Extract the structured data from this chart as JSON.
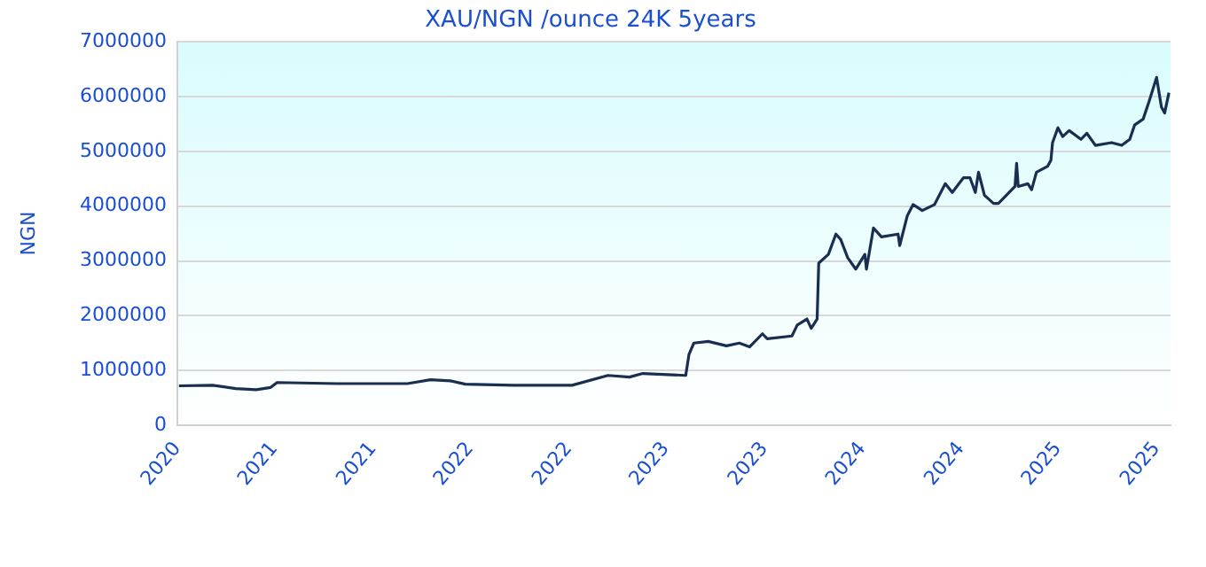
{
  "chart_data": {
    "type": "line",
    "title": "XAU/NGN /ounce 24K 5years",
    "ylabel": "NGN",
    "x": [
      "2020-11-04",
      "2021-01-06",
      "2021-02-18",
      "2021-03-28",
      "2021-04-24",
      "2021-05-06",
      "2021-08-25",
      "2022-01-04",
      "2022-02-16",
      "2022-03-25",
      "2022-04-22",
      "2022-07-21",
      "2022-11-07",
      "2023-01-13",
      "2023-02-22",
      "2023-03-19",
      "2023-06-07",
      "2023-06-13",
      "2023-06-22",
      "2023-07-19",
      "2023-08-22",
      "2023-09-15",
      "2023-10-04",
      "2023-10-28",
      "2023-11-06",
      "2023-12-22",
      "2024-01-01",
      "2024-01-19",
      "2024-01-27",
      "2024-02-07",
      "2024-02-10",
      "2024-02-28",
      "2024-03-13",
      "2024-03-22",
      "2024-04-04",
      "2024-04-19",
      "2024-05-06",
      "2024-05-09",
      "2024-05-22",
      "2024-06-06",
      "2024-07-07",
      "2024-07-10",
      "2024-07-24",
      "2024-08-04",
      "2024-08-21",
      "2024-09-13",
      "2024-10-03",
      "2024-10-16",
      "2024-11-06",
      "2024-11-18",
      "2024-11-28",
      "2024-12-04",
      "2024-12-15",
      "2025-01-01",
      "2025-01-10",
      "2025-02-10",
      "2025-02-13",
      "2025-02-16",
      "2025-03-06",
      "2025-03-13",
      "2025-03-22",
      "2025-04-12",
      "2025-04-18",
      "2025-04-21",
      "2025-05-01",
      "2025-05-10",
      "2025-05-22",
      "2025-06-13",
      "2025-06-24",
      "2025-07-10",
      "2025-08-09",
      "2025-08-28",
      "2025-09-12",
      "2025-09-21",
      "2025-10-07",
      "2025-10-18",
      "2025-11-01",
      "2025-11-10",
      "2025-11-16",
      "2025-11-24"
    ],
    "series": [
      {
        "color": "#1a2e50",
        "values": [
          720000,
          730000,
          670000,
          650000,
          690000,
          780000,
          760000,
          760000,
          830000,
          810000,
          750000,
          730000,
          730000,
          910000,
          880000,
          945000,
          910000,
          1290000,
          1500000,
          1530000,
          1450000,
          1500000,
          1430000,
          1670000,
          1580000,
          1630000,
          1830000,
          1940000,
          1770000,
          1940000,
          2960000,
          3120000,
          3490000,
          3390000,
          3060000,
          2850000,
          3120000,
          2850000,
          3600000,
          3440000,
          3490000,
          3280000,
          3820000,
          4030000,
          3920000,
          4030000,
          4410000,
          4250000,
          4520000,
          4520000,
          4250000,
          4620000,
          4200000,
          4050000,
          4050000,
          4360000,
          4780000,
          4360000,
          4410000,
          4300000,
          4620000,
          4730000,
          4840000,
          5160000,
          5430000,
          5270000,
          5380000,
          5220000,
          5330000,
          5110000,
          5160000,
          5110000,
          5220000,
          5480000,
          5590000,
          5910000,
          6350000,
          5810000,
          5700000,
          6070000
        ]
      }
    ],
    "xlim": [
      "2020-11-01",
      "2025-11-27"
    ],
    "xticks": [
      {
        "value": "2020-11-01",
        "label": "2020"
      },
      {
        "value": "2021-05-01",
        "label": "2021"
      },
      {
        "value": "2021-11-01",
        "label": "2021"
      },
      {
        "value": "2022-05-01",
        "label": "2022"
      },
      {
        "value": "2022-11-01",
        "label": "2022"
      },
      {
        "value": "2023-05-01",
        "label": "2023"
      },
      {
        "value": "2023-11-01",
        "label": "2023"
      },
      {
        "value": "2024-05-01",
        "label": "2024"
      },
      {
        "value": "2024-11-01",
        "label": "2024"
      },
      {
        "value": "2025-05-01",
        "label": "2025"
      },
      {
        "value": "2025-11-01",
        "label": "2025"
      }
    ],
    "ylim": [
      0,
      7000000
    ],
    "yticks": [
      0,
      1000000,
      2000000,
      3000000,
      4000000,
      5000000,
      6000000,
      7000000
    ],
    "grid": "y",
    "legend": false,
    "marker": "none",
    "line_style": "solid"
  }
}
